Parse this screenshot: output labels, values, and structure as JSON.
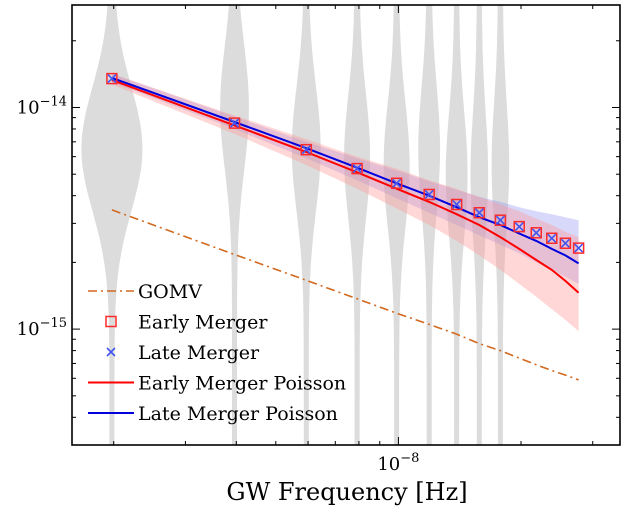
{
  "chart_data": {
    "type": "line",
    "xlabel": "GW Frequency [Hz]",
    "x_scale": "log",
    "y_scale": "log",
    "xlim": [
      1.58e-09,
      3.5e-08
    ],
    "ylim": [
      3e-16,
      2.9e-14
    ],
    "x_tick_labels": [
      {
        "value": 1e-08,
        "base": "10",
        "exp": "−8"
      }
    ],
    "y_tick_labels": [
      {
        "value": 1e-14,
        "base": "10",
        "exp": "−14"
      },
      {
        "value": 1e-15,
        "base": "10",
        "exp": "−15"
      }
    ],
    "frequencies": [
      1.98e-09,
      3.96e-09,
      5.94e-09,
      7.92e-09,
      9.9e-09,
      1.19e-08,
      1.39e-08,
      1.58e-08,
      1.78e-08,
      1.98e-08,
      2.18e-08,
      2.38e-08,
      2.57e-08,
      2.77e-08
    ],
    "series": [
      {
        "name": "GOMV",
        "style": "dashdot",
        "color": "#d2691e",
        "values": [
          3.45e-15,
          2.17e-15,
          1.66e-15,
          1.37e-15,
          1.18e-15,
          1.05e-15,
          9.5e-16,
          8.6e-16,
          8e-16,
          7.4e-16,
          6.9e-16,
          6.5e-16,
          6.2e-16,
          5.9e-16
        ]
      },
      {
        "name": "Early Merger",
        "style": "square-marker",
        "color": "#ff2a2a",
        "values": [
          1.35e-14,
          8.5e-15,
          6.45e-15,
          5.3e-15,
          4.55e-15,
          4.05e-15,
          3.65e-15,
          3.35e-15,
          3.1e-15,
          2.9e-15,
          2.72e-15,
          2.57e-15,
          2.44e-15,
          2.32e-15
        ]
      },
      {
        "name": "Late  Merger",
        "style": "x-marker",
        "color": "#4455ee",
        "values": [
          1.35e-14,
          8.5e-15,
          6.45e-15,
          5.3e-15,
          4.55e-15,
          4.05e-15,
          3.65e-15,
          3.35e-15,
          3.1e-15,
          2.9e-15,
          2.72e-15,
          2.57e-15,
          2.44e-15,
          2.32e-15
        ]
      },
      {
        "name": "Early Merger Poisson",
        "style": "solid",
        "color": "#ff0000",
        "values": [
          1.33e-14,
          8.3e-15,
          6.3e-15,
          5.1e-15,
          4.3e-15,
          3.75e-15,
          3.3e-15,
          2.95e-15,
          2.6e-15,
          2.3e-15,
          2.05e-15,
          1.85e-15,
          1.65e-15,
          1.46e-15
        ],
        "band_low": [
          1.27e-14,
          7.6e-15,
          5.5e-15,
          4.3e-15,
          3.5e-15,
          2.95e-15,
          2.5e-15,
          2.15e-15,
          1.85e-15,
          1.6e-15,
          1.4e-15,
          1.23e-15,
          1.1e-15,
          9.8e-16
        ],
        "band_high": [
          1.42e-14,
          9.2e-15,
          7.2e-15,
          6e-15,
          5.3e-15,
          4.7e-15,
          4.3e-15,
          3.95e-15,
          3.65e-15,
          3.4e-15,
          3.15e-15,
          2.95e-15,
          2.75e-15,
          2.6e-15
        ]
      },
      {
        "name": "Late  Merger Poisson",
        "style": "solid",
        "color": "#0000dd",
        "values": [
          1.36e-14,
          8.6e-15,
          6.55e-15,
          5.35e-15,
          4.55e-15,
          4e-15,
          3.55e-15,
          3.2e-15,
          2.95e-15,
          2.7e-15,
          2.5e-15,
          2.3e-15,
          2.15e-15,
          1.98e-15
        ],
        "band_low": [
          1.3e-14,
          8e-15,
          5.9e-15,
          4.7e-15,
          3.9e-15,
          3.35e-15,
          2.95e-15,
          2.65e-15,
          2.4e-15,
          2.2e-15,
          2e-15,
          1.85e-15,
          1.72e-15,
          1.6e-15
        ],
        "band_high": [
          1.42e-14,
          9.1e-15,
          7e-15,
          5.9e-15,
          5.2e-15,
          4.65e-15,
          4.25e-15,
          3.95e-15,
          3.75e-15,
          3.55e-15,
          3.4e-15,
          3.3e-15,
          3.2e-15,
          3.1e-15
        ]
      }
    ],
    "violins": [
      {
        "x": 1.98e-09,
        "width": 2.0,
        "peak": 6.5e-15
      },
      {
        "x": 3.96e-09,
        "width": 0.85,
        "peak": 1e-14
      },
      {
        "x": 5.94e-09,
        "width": 0.85,
        "peak": 6.5e-15
      },
      {
        "x": 7.92e-09,
        "width": 0.75,
        "peak": 6e-15
      },
      {
        "x": 9.9e-09,
        "width": 0.75,
        "peak": 5.5e-15
      },
      {
        "x": 1.19e-08,
        "width": 0.6,
        "peak": 6.5e-15
      },
      {
        "x": 1.39e-08,
        "width": 0.6,
        "peak": 5e-15
      },
      {
        "x": 1.58e-08,
        "width": 0.45,
        "peak": 5e-15
      },
      {
        "x": 1.78e-08,
        "width": 0.45,
        "peak": 5.5e-15
      }
    ],
    "legend_position": "lower-left",
    "grid": false
  }
}
